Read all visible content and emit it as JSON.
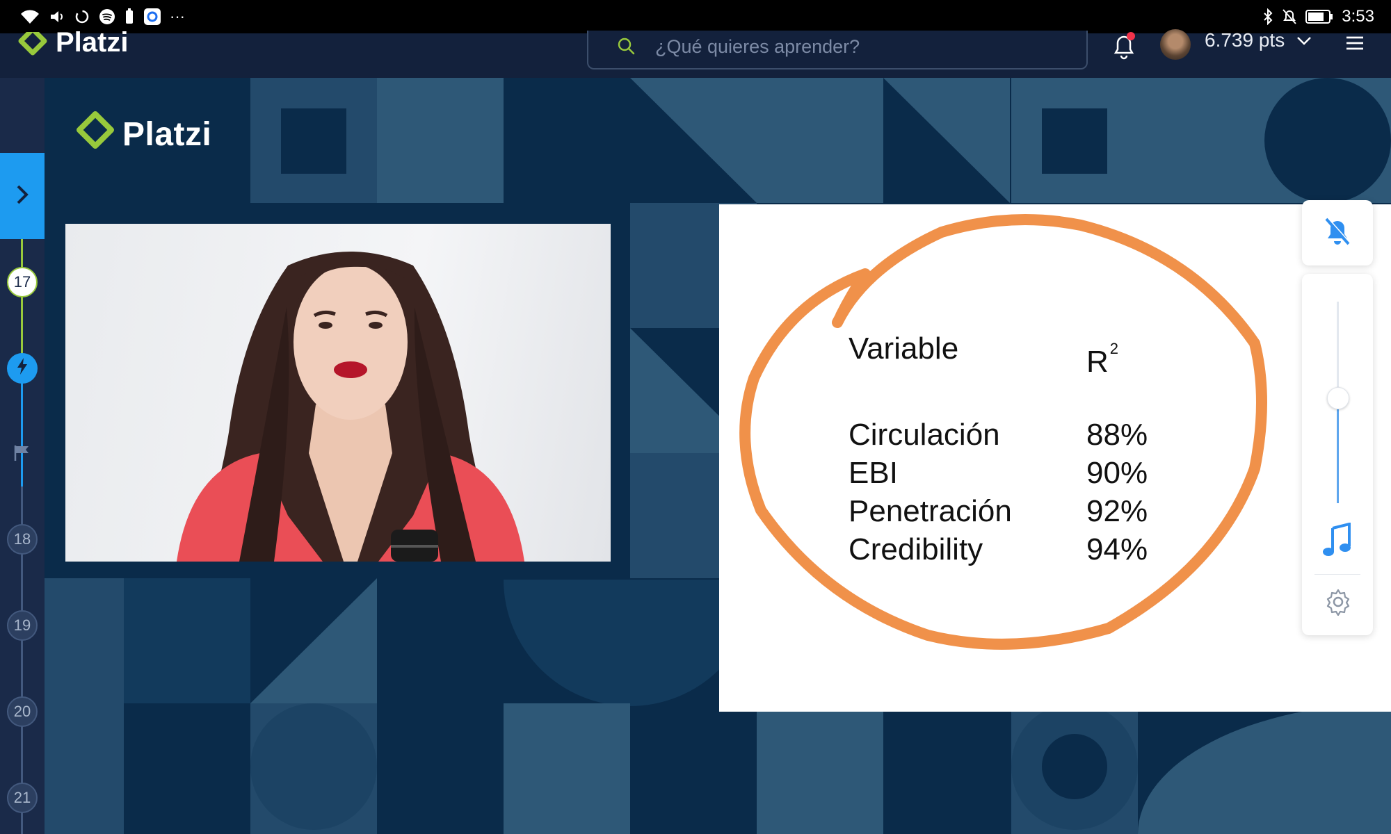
{
  "status_bar": {
    "time": "3:53",
    "left_icons": [
      "wifi-icon",
      "volume-icon",
      "data-saver-icon",
      "spotify-icon",
      "battery-saver-icon",
      "app-icon",
      "more-icon"
    ],
    "right_icons": [
      "bluetooth-icon",
      "notifications-off-icon",
      "battery-icon"
    ],
    "more_label": "···"
  },
  "topnav": {
    "brand": "Platzi",
    "search_placeholder": "¿Qué quieres aprender?",
    "points": "6.739 pts",
    "has_notification": true
  },
  "stage": {
    "brand": "Platzi"
  },
  "rail": {
    "nodes": [
      {
        "label": "17",
        "state": "done"
      },
      {
        "label": "",
        "state": "live",
        "icon": "lightning-icon"
      },
      {
        "label": "",
        "state": "flag",
        "icon": "flag-icon"
      },
      {
        "label": "18",
        "state": "todo"
      },
      {
        "label": "19",
        "state": "todo"
      },
      {
        "label": "20",
        "state": "todo"
      },
      {
        "label": "21",
        "state": "todo"
      }
    ]
  },
  "slide": {
    "header": {
      "variable": "Variable",
      "r2": "R",
      "r2_sup": "2"
    },
    "rows": [
      {
        "variable": "Circulación",
        "value": "88%"
      },
      {
        "variable": "EBI",
        "value": "90%"
      },
      {
        "variable": "Penetración",
        "value": "92%"
      },
      {
        "variable": "Credibility",
        "value": "94%"
      }
    ],
    "annotation_color": "#f0914a"
  },
  "controls": {
    "volume_level": 0.52,
    "muted": true,
    "accent": "#1d9bf0"
  },
  "colors": {
    "brand_green": "#98c93c",
    "nav_bg": "#13213c",
    "stage_bg": "#0a2b4a",
    "accent_blue": "#1d9bf0"
  }
}
